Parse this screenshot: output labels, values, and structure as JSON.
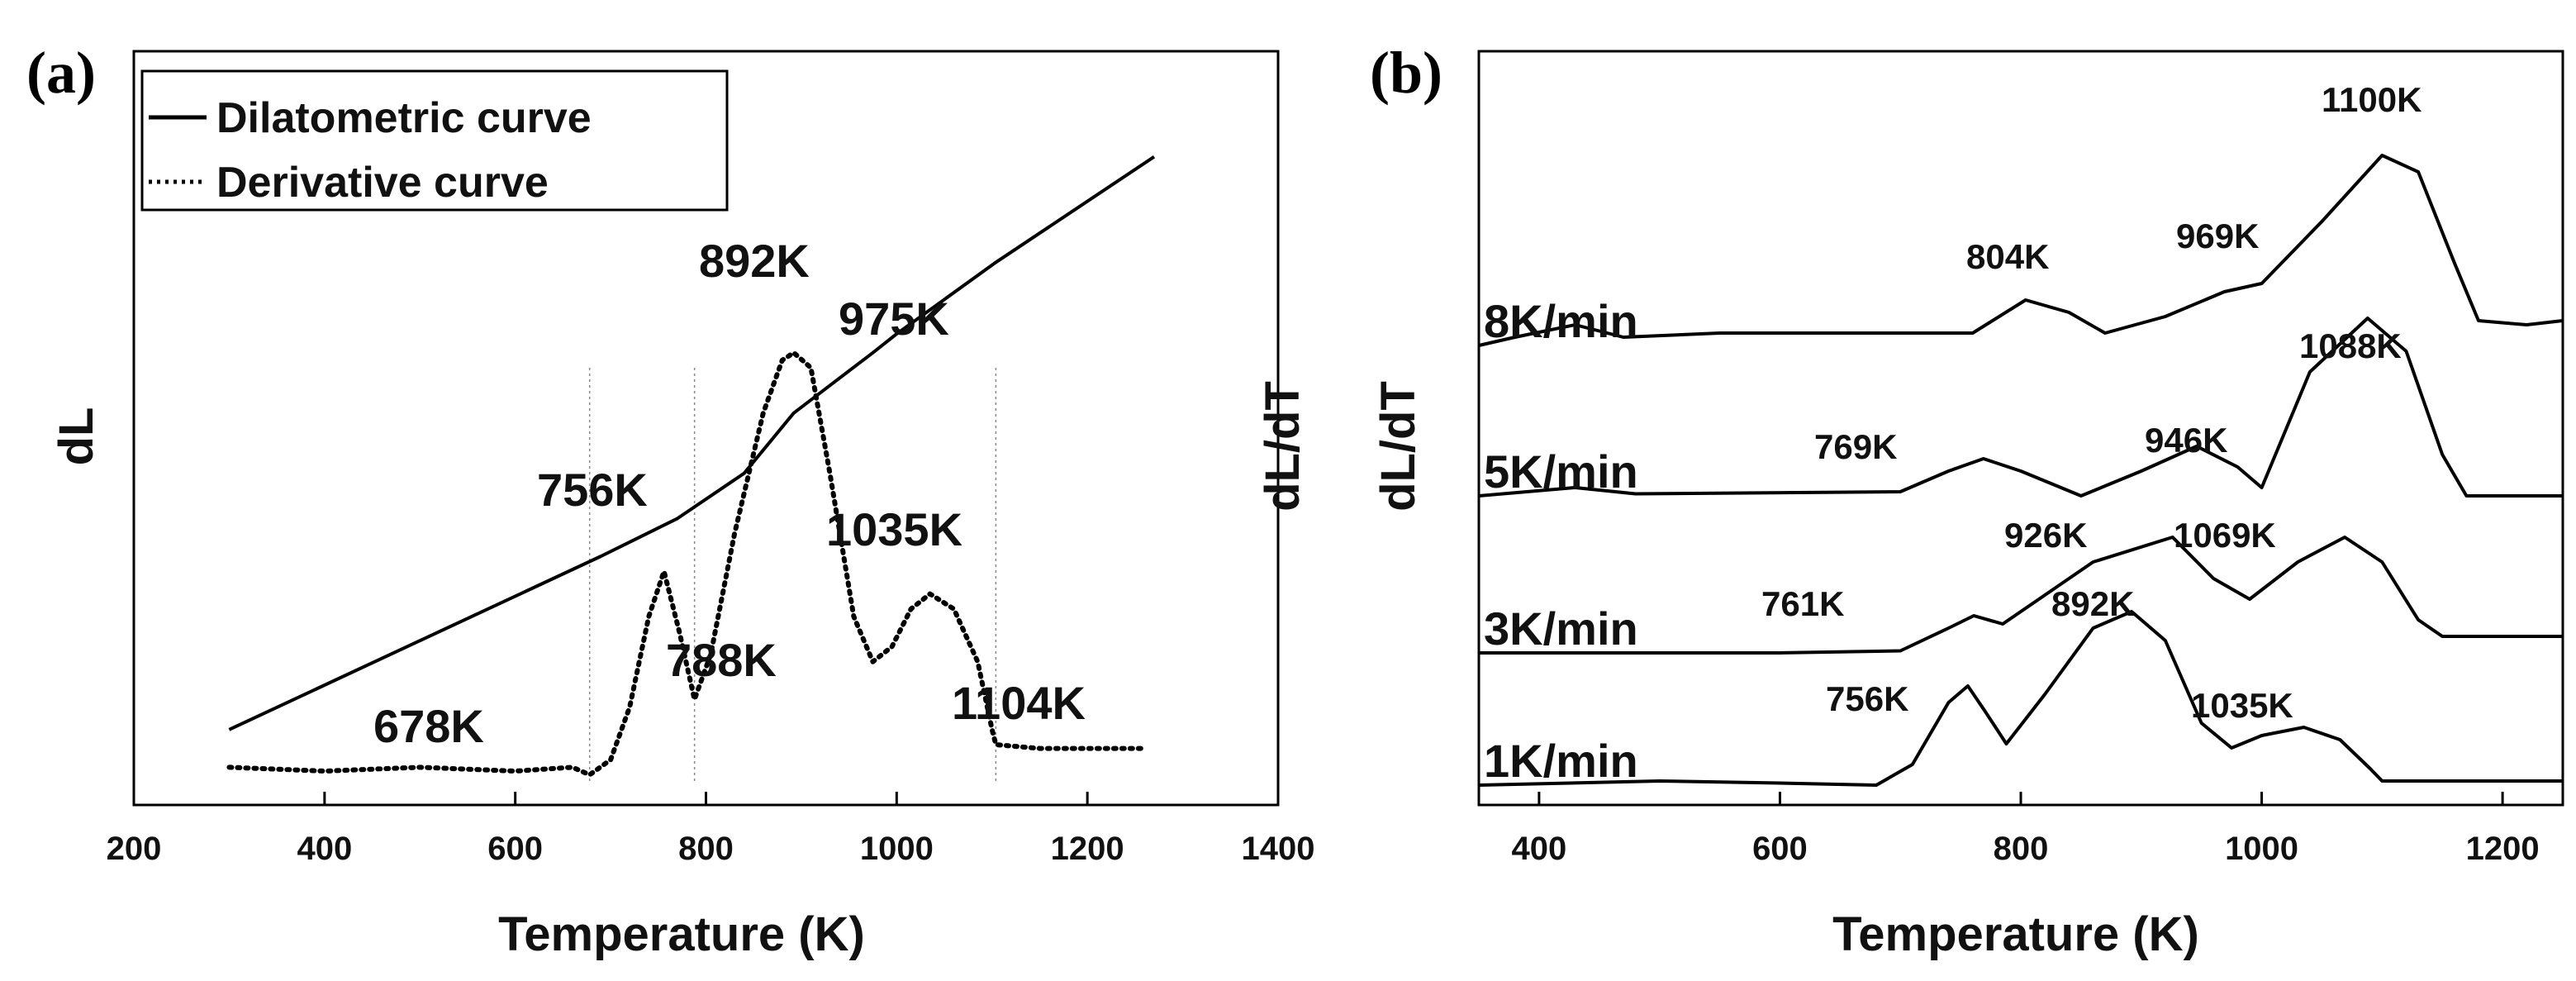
{
  "chart_data": [
    {
      "panel": "(a)",
      "type": "line",
      "xlabel": "Temperature (K)",
      "ylabel": "dL",
      "xlim": [
        200,
        1400
      ],
      "xticks": [
        200,
        400,
        600,
        800,
        1000,
        1200,
        1400
      ],
      "legend": {
        "position": "top-left",
        "entries": [
          {
            "label": "Dilatometric curve",
            "style": "solid"
          },
          {
            "label": "Derivative curve",
            "style": "dotted"
          }
        ]
      },
      "series": [
        {
          "name": "Dilatometric curve",
          "style": "solid",
          "points": [
            [
              300,
              0.1
            ],
            [
              690,
              0.33
            ],
            [
              770,
              0.38
            ],
            [
              840,
              0.44
            ],
            [
              892,
              0.52
            ],
            [
              975,
              0.6
            ],
            [
              1000,
              0.625
            ],
            [
              1104,
              0.72
            ],
            [
              1270,
              0.86
            ]
          ]
        },
        {
          "name": "Derivative curve",
          "style": "dotted",
          "points": [
            [
              300,
              0.05
            ],
            [
              400,
              0.045
            ],
            [
              500,
              0.05
            ],
            [
              600,
              0.045
            ],
            [
              660,
              0.05
            ],
            [
              678,
              0.04
            ],
            [
              700,
              0.06
            ],
            [
              720,
              0.13
            ],
            [
              740,
              0.25
            ],
            [
              756,
              0.31
            ],
            [
              772,
              0.23
            ],
            [
              788,
              0.14
            ],
            [
              805,
              0.2
            ],
            [
              830,
              0.36
            ],
            [
              860,
              0.52
            ],
            [
              880,
              0.59
            ],
            [
              892,
              0.6
            ],
            [
              910,
              0.58
            ],
            [
              930,
              0.44
            ],
            [
              955,
              0.25
            ],
            [
              975,
              0.19
            ],
            [
              995,
              0.21
            ],
            [
              1015,
              0.26
            ],
            [
              1035,
              0.28
            ],
            [
              1060,
              0.26
            ],
            [
              1085,
              0.19
            ],
            [
              1100,
              0.1
            ],
            [
              1104,
              0.08
            ],
            [
              1150,
              0.075
            ],
            [
              1200,
              0.075
            ],
            [
              1260,
              0.075
            ]
          ]
        }
      ],
      "vlines": [
        678,
        788,
        1104
      ],
      "annotations": [
        "678K",
        "756K",
        "788K",
        "892K",
        "975K",
        "1035K",
        "1104K"
      ]
    },
    {
      "panel": "(b)",
      "type": "line",
      "xlabel": "Temperature (K)",
      "ylabel": "dL/dT",
      "xlim": [
        350,
        1250
      ],
      "xticks": [
        400,
        600,
        800,
        1000,
        1200
      ],
      "series": [
        {
          "name": "1K/min",
          "offset": 0,
          "peaks": [
            "756K",
            "892K",
            "1035K"
          ],
          "points": [
            [
              350,
              0.0
            ],
            [
              500,
              0.01
            ],
            [
              600,
              0.005
            ],
            [
              680,
              0.0
            ],
            [
              710,
              0.05
            ],
            [
              740,
              0.2
            ],
            [
              756,
              0.24
            ],
            [
              770,
              0.18
            ],
            [
              788,
              0.1
            ],
            [
              820,
              0.22
            ],
            [
              860,
              0.38
            ],
            [
              892,
              0.42
            ],
            [
              920,
              0.35
            ],
            [
              950,
              0.15
            ],
            [
              975,
              0.09
            ],
            [
              1000,
              0.12
            ],
            [
              1035,
              0.14
            ],
            [
              1065,
              0.11
            ],
            [
              1090,
              0.04
            ],
            [
              1100,
              0.01
            ],
            [
              1250,
              0.01
            ]
          ]
        },
        {
          "name": "3K/min",
          "offset": 1,
          "peaks": [
            "761K",
            "926K",
            "1069K"
          ],
          "points": [
            [
              350,
              0.0
            ],
            [
              600,
              0.0
            ],
            [
              700,
              0.005
            ],
            [
              740,
              0.06
            ],
            [
              761,
              0.09
            ],
            [
              785,
              0.07
            ],
            [
              810,
              0.12
            ],
            [
              860,
              0.22
            ],
            [
              926,
              0.28
            ],
            [
              960,
              0.18
            ],
            [
              990,
              0.13
            ],
            [
              1030,
              0.22
            ],
            [
              1069,
              0.28
            ],
            [
              1100,
              0.22
            ],
            [
              1130,
              0.08
            ],
            [
              1150,
              0.04
            ],
            [
              1250,
              0.04
            ]
          ]
        },
        {
          "name": "5K/min",
          "offset": 2,
          "peaks": [
            "769K",
            "946K",
            "1088K"
          ],
          "points": [
            [
              350,
              0.0
            ],
            [
              430,
              0.02
            ],
            [
              480,
              0.005
            ],
            [
              700,
              0.01
            ],
            [
              740,
              0.06
            ],
            [
              769,
              0.09
            ],
            [
              800,
              0.06
            ],
            [
              850,
              0.0
            ],
            [
              900,
              0.06
            ],
            [
              946,
              0.12
            ],
            [
              980,
              0.07
            ],
            [
              1000,
              0.02
            ],
            [
              1040,
              0.3
            ],
            [
              1088,
              0.43
            ],
            [
              1120,
              0.35
            ],
            [
              1150,
              0.1
            ],
            [
              1170,
              0.0
            ],
            [
              1250,
              0.0
            ]
          ]
        },
        {
          "name": "8K/min",
          "offset": 3,
          "peaks": [
            "804K",
            "969K",
            "1100K"
          ],
          "points": [
            [
              350,
              0.0
            ],
            [
              380,
              0.02
            ],
            [
              430,
              0.05
            ],
            [
              470,
              0.02
            ],
            [
              550,
              0.03
            ],
            [
              700,
              0.03
            ],
            [
              760,
              0.03
            ],
            [
              804,
              0.11
            ],
            [
              840,
              0.08
            ],
            [
              870,
              0.03
            ],
            [
              920,
              0.07
            ],
            [
              969,
              0.13
            ],
            [
              1000,
              0.15
            ],
            [
              1050,
              0.3
            ],
            [
              1100,
              0.46
            ],
            [
              1130,
              0.42
            ],
            [
              1160,
              0.2
            ],
            [
              1180,
              0.06
            ],
            [
              1220,
              0.05
            ],
            [
              1250,
              0.06
            ]
          ]
        }
      ],
      "annotations": [
        "756K",
        "892K",
        "1035K",
        "761K",
        "926K",
        "1069K",
        "769K",
        "946K",
        "1088K",
        "804K",
        "969K",
        "1100K"
      ]
    }
  ],
  "labels": {
    "panel_a": "(a)",
    "panel_b": "(b)",
    "a_ylabel": "dL",
    "b_ylabel_outer": "dL/dT",
    "b_ylabel_inner": "dL/dT",
    "a_xlabel": "Temperature (K)",
    "b_xlabel": "Temperature (K)",
    "legend_solid": "Dilatometric curve",
    "legend_dotted": "Derivative curve"
  }
}
